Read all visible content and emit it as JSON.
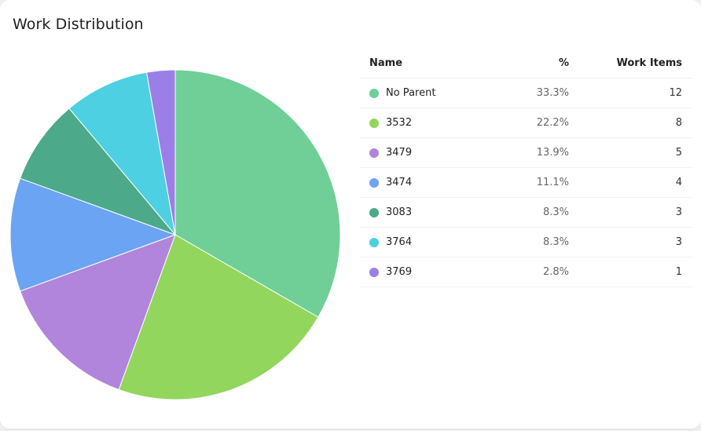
{
  "title": "Work Distribution",
  "table": {
    "headers": {
      "name": "Name",
      "percent": "%",
      "count": "Work Items"
    },
    "rows": [
      {
        "name": "No Parent",
        "percent": "33.3%",
        "count": "12",
        "color": "#6fcf97"
      },
      {
        "name": "3532",
        "percent": "22.2%",
        "count": "8",
        "color": "#92d65d"
      },
      {
        "name": "3479",
        "percent": "13.9%",
        "count": "5",
        "color": "#b185db"
      },
      {
        "name": "3474",
        "percent": "11.1%",
        "count": "4",
        "color": "#6ba4f2"
      },
      {
        "name": "3083",
        "percent": "8.3%",
        "count": "3",
        "color": "#4ca98a"
      },
      {
        "name": "3764",
        "percent": "8.3%",
        "count": "3",
        "color": "#4dd0e1"
      },
      {
        "name": "3769",
        "percent": "2.8%",
        "count": "1",
        "color": "#9b7fe6"
      }
    ]
  },
  "chart_data": {
    "type": "pie",
    "title": "Work Distribution",
    "categories": [
      "No Parent",
      "3532",
      "3479",
      "3474",
      "3083",
      "3764",
      "3769"
    ],
    "values": [
      12,
      8,
      5,
      4,
      3,
      3,
      1
    ],
    "percentages": [
      33.3,
      22.2,
      13.9,
      11.1,
      8.3,
      8.3,
      2.8
    ],
    "colors": [
      "#6fcf97",
      "#92d65d",
      "#b185db",
      "#6ba4f2",
      "#4ca98a",
      "#4dd0e1",
      "#9b7fe6"
    ],
    "legend_position": "right (table)",
    "start_angle": "top, clockwise"
  }
}
